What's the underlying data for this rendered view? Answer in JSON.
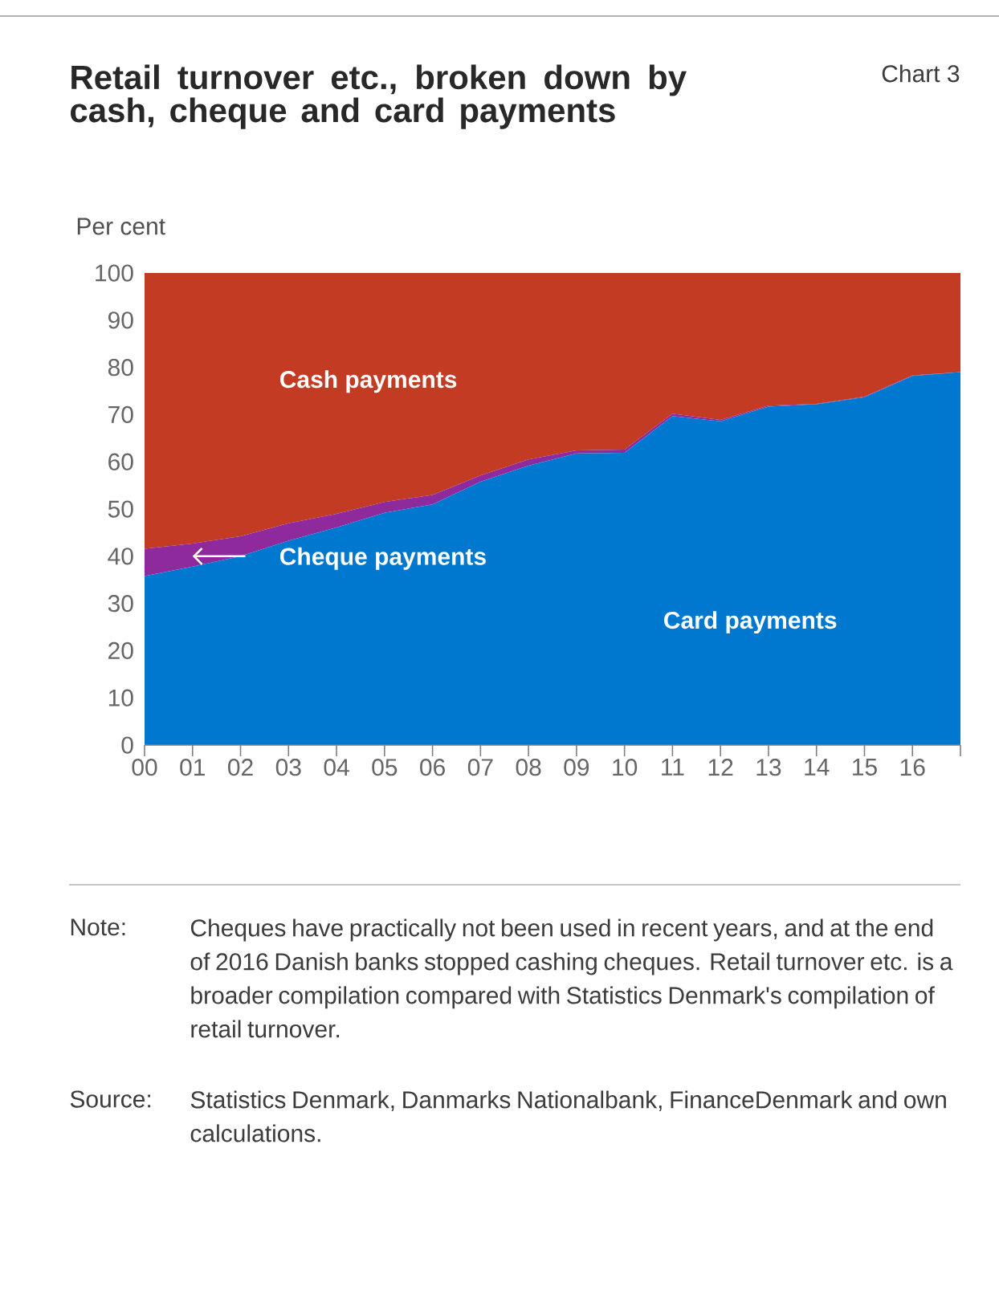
{
  "chart_data": {
    "type": "area",
    "stacked": true,
    "title": "Retail turnover etc., broken down by cash, cheque and card payments",
    "ylabel": "Per cent",
    "categories": [
      "00",
      "01",
      "02",
      "03",
      "04",
      "05",
      "06",
      "07",
      "08",
      "09",
      "10",
      "11",
      "12",
      "13",
      "14",
      "15",
      "16",
      null
    ],
    "series": [
      {
        "name": "Card payments",
        "color": "#0078d0",
        "values": [
          35.8,
          37.8,
          40.0,
          43.3,
          46.1,
          49.2,
          51.0,
          55.8,
          59.2,
          61.8,
          61.9,
          69.7,
          68.6,
          71.7,
          72.2,
          73.7,
          78.2,
          79.0
        ]
      },
      {
        "name": "Cheque payments",
        "color": "#8e2a9c",
        "values": [
          5.8,
          4.9,
          4.2,
          3.7,
          2.9,
          2.3,
          2.0,
          1.3,
          1.3,
          0.6,
          0.7,
          0.5,
          0.3,
          0.2,
          0.1,
          0.1,
          0.1,
          0.0
        ]
      },
      {
        "name": "Cash payments",
        "color": "#c23b22",
        "values": [
          58.4,
          57.3,
          55.8,
          53.0,
          51.0,
          48.5,
          47.0,
          42.9,
          39.5,
          37.6,
          37.4,
          29.8,
          31.1,
          28.1,
          27.7,
          26.2,
          21.7,
          21.0
        ]
      }
    ],
    "ylim": [
      0,
      100
    ],
    "yticks": [
      0,
      10,
      20,
      30,
      40,
      50,
      60,
      70,
      80,
      90,
      100
    ],
    "legend": false,
    "annotations": [
      "Chart 3",
      "Note:",
      "Cheques have practically not been used in recent years, and at the end of 2016 Danish banks stopped cashing cheques. Retail turnover etc. is a broader compilation compared with Statistics Denmark's compilation of retail turnover.",
      "Source:",
      "Statistics Denmark, Danmarks Nationalbank, FinanceDenmark and own calculations."
    ]
  }
}
